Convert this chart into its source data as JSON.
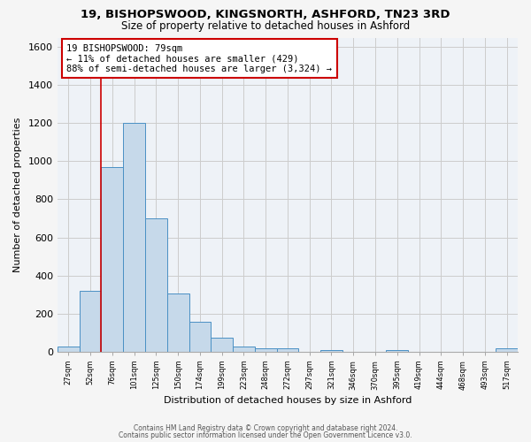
{
  "title1": "19, BISHOPSWOOD, KINGSNORTH, ASHFORD, TN23 3RD",
  "title2": "Size of property relative to detached houses in Ashford",
  "xlabel": "Distribution of detached houses by size in Ashford",
  "ylabel": "Number of detached properties",
  "bar_labels": [
    "27sqm",
    "52sqm",
    "76sqm",
    "101sqm",
    "125sqm",
    "150sqm",
    "174sqm",
    "199sqm",
    "223sqm",
    "248sqm",
    "272sqm",
    "297sqm",
    "321sqm",
    "346sqm",
    "370sqm",
    "395sqm",
    "419sqm",
    "444sqm",
    "468sqm",
    "493sqm",
    "517sqm"
  ],
  "bar_values": [
    25,
    320,
    970,
    1200,
    700,
    305,
    155,
    75,
    25,
    18,
    15,
    0,
    10,
    0,
    0,
    10,
    0,
    0,
    0,
    0,
    15
  ],
  "bar_color": "#c6d9ea",
  "bar_edge_color": "#4a90c4",
  "annotation_label": "19 BISHOPSWOOD: 79sqm",
  "annotation_line1": "← 11% of detached houses are smaller (429)",
  "annotation_line2": "88% of semi-detached houses are larger (3,324) →",
  "vline_color": "#cc0000",
  "annotation_box_facecolor": "#ffffff",
  "annotation_box_edgecolor": "#cc0000",
  "ylim": [
    0,
    1650
  ],
  "yticks": [
    0,
    200,
    400,
    600,
    800,
    1000,
    1200,
    1400,
    1600
  ],
  "grid_color": "#cccccc",
  "bg_color": "#eef2f7",
  "fig_bg_color": "#f5f5f5",
  "vline_x_index": 2,
  "footer1": "Contains HM Land Registry data © Crown copyright and database right 2024.",
  "footer2": "Contains public sector information licensed under the Open Government Licence v3.0."
}
